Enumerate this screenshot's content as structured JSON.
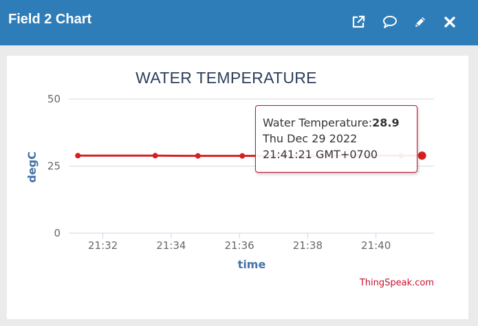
{
  "window": {
    "title": "Field 2 Chart",
    "buttons": {
      "popout": {
        "icon": "external-link-icon"
      },
      "comment": {
        "icon": "speech-bubble-icon"
      },
      "edit": {
        "icon": "pencil-icon"
      },
      "close": {
        "icon": "close-icon"
      }
    }
  },
  "colors": {
    "titlebar": "#2f7db8",
    "series": "#d62020",
    "title": "#2c3e58",
    "axis_label": "#4572a7",
    "credit": "#c8102e"
  },
  "chart_data": {
    "type": "line",
    "title": "WATER TEMPERATURE",
    "xlabel": "time",
    "ylabel": "degC",
    "ylim": [
      0,
      50
    ],
    "yticks": [
      0,
      25,
      50
    ],
    "xlim": [
      "21:31:00",
      "21:41:42"
    ],
    "xticks": [
      "21:32",
      "21:34",
      "21:36",
      "21:38",
      "21:40"
    ],
    "grid": true,
    "legend": "none",
    "series": [
      {
        "x": [
          "21:31:16",
          "21:33:32",
          "21:34:47",
          "21:36:05",
          "21:37:20",
          "21:38:40",
          "21:40:44",
          "21:41:21"
        ],
        "y": [
          28.9,
          28.9,
          28.8,
          28.8,
          28.8,
          28.9,
          28.9,
          28.9
        ]
      }
    ],
    "tooltip": {
      "label": "Water Temperature:",
      "value": "28.9",
      "date": "Thu Dec 29 2022",
      "time": "21:41:21 GMT+0700"
    },
    "credit": "ThingSpeak.com"
  }
}
